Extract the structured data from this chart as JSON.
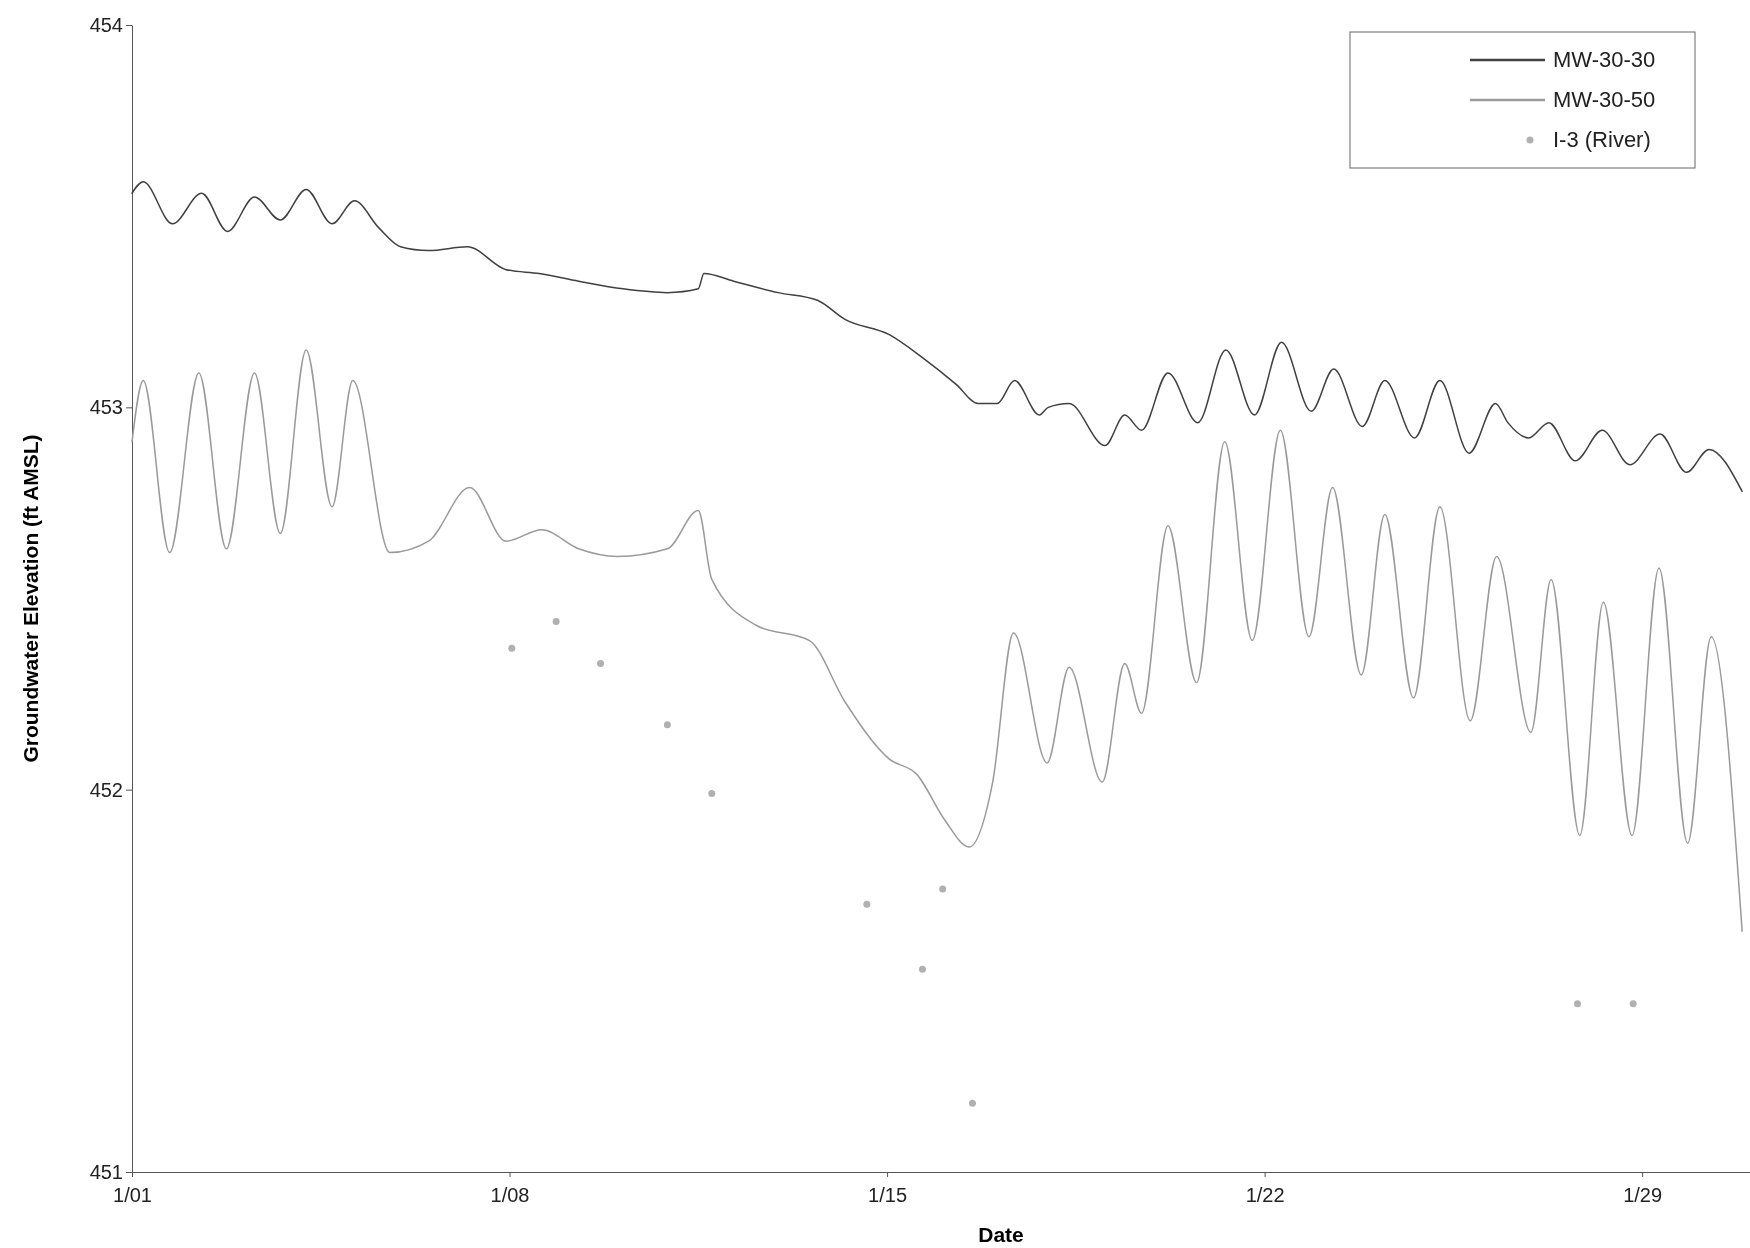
{
  "chart_data": {
    "type": "line",
    "xlabel": "Date",
    "ylabel": "Groundwater Elevation (ft AMSL)",
    "xlim": [
      "--01-01",
      "--01-31"
    ],
    "xticks": [
      {
        "value": "--01-01",
        "label": "1/01"
      },
      {
        "value": "--01-08",
        "label": "1/08"
      },
      {
        "value": "--01-15",
        "label": "1/15"
      },
      {
        "value": "--01-22",
        "label": "1/22"
      },
      {
        "value": "--01-29",
        "label": "1/29"
      }
    ],
    "ylim": [
      451,
      454
    ],
    "yticks": [
      451,
      452,
      453,
      454
    ],
    "grid": false,
    "legend": "top right",
    "marker": "none",
    "line_style": "solid",
    "series": [
      {
        "name": "MW-30-30",
        "color": "#404040",
        "x": [
          "--01-01T00:00",
          "--01-01T05:00",
          "--01-01T18:00",
          "--01-02T07:00",
          "--01-02T18:30",
          "--01-03T06:30",
          "--01-03T18:00",
          "--01-04T05:30",
          "--01-04T17:00",
          "--01-05T03:00",
          "--01-05T13:45",
          "--01-05T23:30",
          "--01-06T12:00",
          "--01-07T05:15",
          "--01-07T22:30",
          "--01-08T13:15",
          "--01-09T06:45",
          "--01-10T02:30",
          "--01-10T22:15",
          "--01-11T12:00",
          "--01-11T14:30",
          "--01-12T03:45",
          "--01-12T23:30",
          "--01-13T17:00",
          "--01-14T05:15",
          "--01-15T01:00",
          "--01-15T15:45",
          "--01-16T06:45",
          "--01-16T16:30",
          "--01-17T01:00",
          "--01-17T08:45",
          "--01-17T19:45",
          "--01-17T23:45",
          "--01-18T09:00",
          "--01-19T01:00",
          "--01-19T09:45",
          "--01-19T17:15",
          "--01-20T05:00",
          "--01-20T18:15",
          "--01-21T06:45",
          "--01-21T19:30",
          "--01-22T07:30",
          "--01-22T20:45",
          "--01-23T06:45",
          "--01-23T19:30",
          "--01-24T05:30",
          "--01-24T18:45",
          "--01-25T06:00",
          "--01-25T19:00",
          "--01-26T06:45",
          "--01-26T12:15",
          "--01-26T21:30",
          "--01-27T06:30",
          "--01-27T18:15",
          "--01-28T06:15",
          "--01-28T18:30",
          "--01-29T08:00",
          "--01-29T19:45",
          "--01-30T05:45",
          "--01-30T20:30"
        ],
        "values": [
          453.56,
          453.59,
          453.48,
          453.56,
          453.46,
          453.55,
          453.49,
          453.57,
          453.48,
          453.54,
          453.47,
          453.42,
          453.41,
          453.42,
          453.36,
          453.35,
          453.33,
          453.31,
          453.3,
          453.31,
          453.35,
          453.33,
          453.3,
          453.28,
          453.23,
          453.19,
          453.13,
          453.06,
          453.01,
          453.01,
          453.07,
          452.98,
          453.0,
          453.01,
          452.9,
          452.98,
          452.94,
          453.09,
          452.96,
          453.15,
          452.98,
          453.17,
          452.99,
          453.1,
          452.95,
          453.07,
          452.92,
          453.07,
          452.88,
          453.01,
          452.96,
          452.92,
          452.96,
          452.86,
          452.94,
          452.85,
          452.93,
          452.83,
          452.89,
          452.78
        ]
      },
      {
        "name": "MW-30-50",
        "color": "#9a9a9a",
        "x": [
          "--01-01T00:00",
          "--01-01T05:00",
          "--01-01T16:45",
          "--01-02T05:45",
          "--01-02T18:00",
          "--01-03T06:30",
          "--01-03T18:00",
          "--01-04T05:30",
          "--01-04T17:00",
          "--01-05T02:15",
          "--01-05T18:45",
          "--01-06T12:00",
          "--01-07T06:15",
          "--01-07T22:30",
          "--01-08T14:15",
          "--01-09T06:45",
          "--01-10T00:00",
          "--01-10T22:15",
          "--01-11T12:00",
          "--01-11T18:00",
          "--01-12T13:45",
          "--01-13T13:30",
          "--01-14T05:15",
          "--01-15T01:00",
          "--01-15T13:15",
          "--01-16T01:45",
          "--01-16T12:30",
          "--01-16T23:00",
          "--01-17T08:15",
          "--01-17T23:15",
          "--01-18T09:00",
          "--01-18T23:45",
          "--01-19T09:45",
          "--01-19T17:15",
          "--01-20T05:00",
          "--01-20T17:45",
          "--01-21T06:15",
          "--01-21T18:30",
          "--01-22T07:00",
          "--01-22T19:45",
          "--01-23T06:15",
          "--01-23T19:00",
          "--01-24T05:30",
          "--01-24T18:15",
          "--01-25T06:00",
          "--01-25T19:30",
          "--01-26T07:15",
          "--01-26T22:30",
          "--01-27T07:30",
          "--01-27T20:15",
          "--01-28T06:45",
          "--01-28T19:30",
          "--01-29T07:30",
          "--01-29T20:15",
          "--01-30T06:45",
          "--01-30T20:30"
        ],
        "values": [
          452.91,
          453.07,
          452.62,
          453.09,
          452.63,
          453.09,
          452.67,
          453.15,
          452.74,
          453.07,
          452.62,
          452.65,
          452.79,
          452.65,
          452.68,
          452.63,
          452.61,
          452.63,
          452.73,
          452.55,
          452.43,
          452.39,
          452.23,
          452.08,
          452.04,
          451.92,
          451.85,
          452.02,
          452.41,
          452.07,
          452.32,
          452.02,
          452.33,
          452.2,
          452.69,
          452.28,
          452.91,
          452.39,
          452.94,
          452.4,
          452.79,
          452.3,
          452.72,
          452.24,
          452.74,
          452.18,
          452.61,
          452.15,
          452.55,
          451.88,
          452.49,
          451.88,
          452.58,
          451.86,
          452.4,
          451.63
        ]
      },
      {
        "name": "I-3 (River)",
        "color": "#b0b0b0",
        "type": "scatter",
        "marker": "circle",
        "x": [
          "--01-08T01:00",
          "--01-08T20:45",
          "--01-09T16:30",
          "--01-10T22:15",
          "--01-11T18:00",
          "--01-14T15:00",
          "--01-15T15:45",
          "--01-16T00:45",
          "--01-16T14:00",
          "--01-27T19:15",
          "--01-28T20:00"
        ],
        "values": [
          452.37,
          452.44,
          452.33,
          452.17,
          451.99,
          451.7,
          451.53,
          451.74,
          451.18,
          451.44,
          451.44
        ]
      }
    ]
  }
}
